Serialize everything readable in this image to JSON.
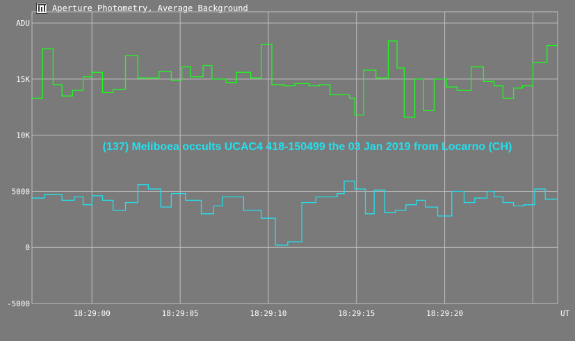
{
  "window": {
    "title": "Aperture Photometry, Average Background",
    "icon": "chart-icon"
  },
  "colors": {
    "background": "#7a7a7a",
    "grid": "#c0c0c0",
    "axis_text": "#ffffff",
    "series_green": "#19ff19",
    "series_cyan": "#22e0ee",
    "annotation": "#22e0ee"
  },
  "chart_data": {
    "type": "line",
    "title": "",
    "ylabel": "ADU",
    "xlabel": "UT",
    "ylim": [
      -5000,
      21000
    ],
    "xlim": [
      56.6,
      86.4
    ],
    "x_unit": "seconds after 18:28:00",
    "grid": true,
    "legend": "none",
    "y_ticks": [
      {
        "value": -5000,
        "label": "-5000"
      },
      {
        "value": 0,
        "label": "0"
      },
      {
        "value": 5000,
        "label": "5000"
      },
      {
        "value": 10000,
        "label": "10K"
      },
      {
        "value": 15000,
        "label": "15K"
      },
      {
        "value": 20000,
        "label": "ADU"
      }
    ],
    "x_ticks": [
      {
        "value": 60,
        "label": "18:29:00"
      },
      {
        "value": 65,
        "label": "18:29:05"
      },
      {
        "value": 70,
        "label": "18:29:10"
      },
      {
        "value": 75,
        "label": "18:29:15"
      },
      {
        "value": 80,
        "label": "18:29:20"
      },
      {
        "value": 85,
        "label": ""
      }
    ],
    "annotation": "(137) Meliboea occults UCAC4 418-150499 the 03 Jan 2019 from Locarno (CH)",
    "series": [
      {
        "color": "#19ff19",
        "x": [
          56.6,
          57.2,
          57.2,
          57.8,
          57.8,
          58.3,
          58.3,
          58.9,
          58.9,
          59.5,
          59.5,
          60.0,
          60.0,
          60.6,
          60.6,
          61.2,
          61.2,
          61.9,
          61.9,
          62.6,
          62.6,
          63.8,
          63.8,
          64.5,
          64.5,
          65.1,
          65.1,
          65.6,
          65.6,
          66.3,
          66.3,
          66.8,
          66.8,
          67.6,
          67.6,
          68.2,
          68.2,
          69.0,
          69.0,
          69.6,
          69.6,
          70.2,
          70.2,
          70.9,
          70.9,
          71.5,
          71.5,
          72.3,
          72.3,
          72.9,
          72.9,
          73.5,
          73.5,
          74.6,
          74.6,
          74.9,
          74.9,
          75.4,
          75.4,
          76.1,
          76.1,
          76.8,
          76.8,
          77.3,
          77.3,
          77.7,
          77.7,
          78.3,
          78.3,
          78.8,
          78.8,
          79.4,
          79.4,
          80.1,
          80.1,
          80.7,
          80.7,
          81.5,
          81.5,
          82.2,
          82.2,
          82.8,
          82.8,
          83.3,
          83.3,
          83.9,
          83.9,
          84.4,
          84.4,
          85.0,
          85.0,
          85.8,
          85.8,
          86.4
        ],
        "values": [
          13300,
          13300,
          17700,
          17700,
          14500,
          14500,
          13500,
          13500,
          14000,
          14000,
          15200,
          15200,
          15600,
          15600,
          13800,
          13800,
          14100,
          14100,
          17100,
          17100,
          15100,
          15100,
          15700,
          15700,
          14900,
          14900,
          16100,
          16100,
          15200,
          15200,
          16200,
          16200,
          15000,
          15000,
          14700,
          14700,
          15600,
          15600,
          15100,
          15100,
          18100,
          18100,
          14500,
          14500,
          14400,
          14400,
          14600,
          14600,
          14400,
          14400,
          14500,
          14500,
          13600,
          13600,
          13300,
          13300,
          11800,
          11800,
          15800,
          15800,
          15100,
          15100,
          18400,
          18400,
          16000,
          16000,
          11600,
          11600,
          15000,
          15000,
          12200,
          12200,
          15000,
          15000,
          14300,
          14300,
          14000,
          14000,
          16100,
          16100,
          14800,
          14800,
          14400,
          14400,
          13300,
          13300,
          14200,
          14200,
          14400,
          14400,
          16500,
          16500,
          18000,
          18000
        ]
      },
      {
        "color": "#22e0ee",
        "x": [
          56.6,
          57.3,
          57.3,
          58.3,
          58.3,
          59.0,
          59.0,
          59.5,
          59.5,
          60.0,
          60.0,
          60.6,
          60.6,
          61.2,
          61.2,
          61.9,
          61.9,
          62.6,
          62.6,
          63.2,
          63.2,
          63.9,
          63.9,
          64.5,
          64.5,
          65.3,
          65.3,
          66.2,
          66.2,
          66.9,
          66.9,
          67.4,
          67.4,
          68.6,
          68.6,
          69.6,
          69.6,
          70.4,
          70.4,
          71.1,
          71.1,
          71.9,
          71.9,
          72.7,
          72.7,
          73.9,
          73.9,
          74.3,
          74.3,
          74.9,
          74.9,
          75.5,
          75.5,
          76.0,
          76.0,
          76.6,
          76.6,
          77.2,
          77.2,
          77.8,
          77.8,
          78.4,
          78.4,
          78.9,
          78.9,
          79.6,
          79.6,
          80.4,
          80.4,
          81.1,
          81.1,
          81.7,
          81.7,
          82.4,
          82.4,
          82.8,
          82.8,
          83.3,
          83.3,
          83.9,
          83.9,
          84.5,
          84.5,
          85.1,
          85.1,
          85.7,
          85.7,
          86.4
        ],
        "values": [
          4400,
          4400,
          4700,
          4700,
          4200,
          4200,
          4500,
          4500,
          3800,
          3800,
          4600,
          4600,
          4200,
          4200,
          3300,
          3300,
          4000,
          4000,
          5600,
          5600,
          5200,
          5200,
          3600,
          3600,
          4800,
          4800,
          4200,
          4200,
          3000,
          3000,
          3700,
          3700,
          4500,
          4500,
          3300,
          3300,
          2600,
          2600,
          200,
          200,
          500,
          500,
          4000,
          4000,
          4500,
          4500,
          4800,
          4800,
          5900,
          5900,
          5200,
          5200,
          3000,
          3000,
          5100,
          5100,
          3100,
          3100,
          3300,
          3300,
          3800,
          3800,
          4200,
          4200,
          3600,
          3600,
          2800,
          2800,
          5000,
          5000,
          4000,
          4000,
          4400,
          4400,
          5000,
          5000,
          4500,
          4500,
          4000,
          4000,
          3700,
          3700,
          3800,
          3800,
          5200,
          5200,
          4300,
          4300
        ]
      }
    ]
  }
}
